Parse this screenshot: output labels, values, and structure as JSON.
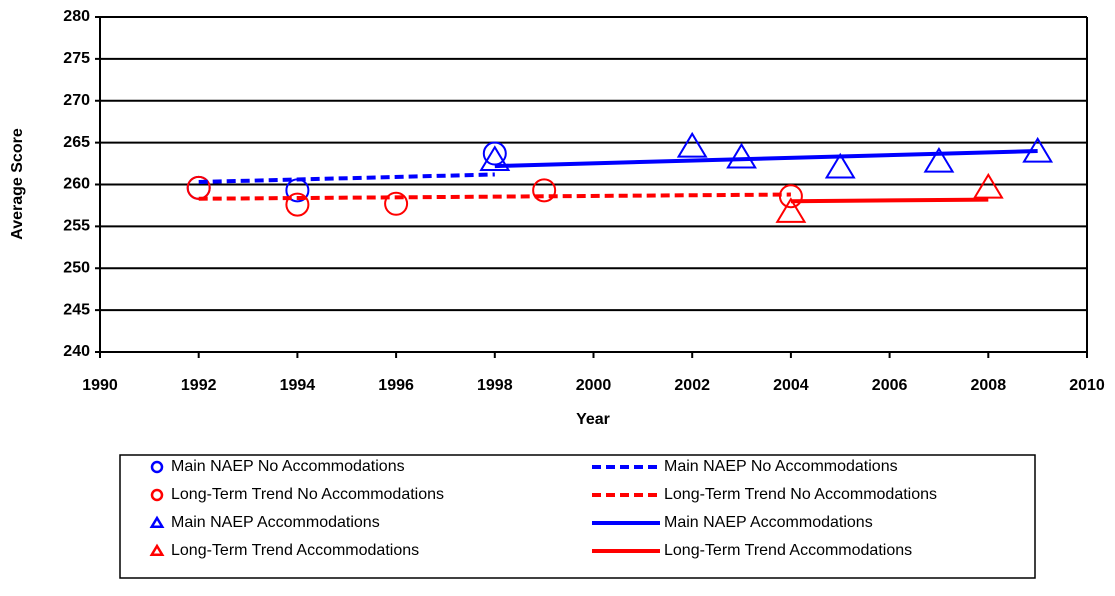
{
  "chart_data": {
    "type": "scatter-trend",
    "xlabel": "Year",
    "ylabel": "Average Score",
    "xlim": [
      1990,
      2010
    ],
    "xticks": [
      1990,
      1992,
      1994,
      1996,
      1998,
      2000,
      2002,
      2004,
      2006,
      2008,
      2010
    ],
    "ylim": [
      240,
      280
    ],
    "yticks": [
      240,
      245,
      250,
      255,
      260,
      265,
      270,
      275,
      280
    ],
    "grid": true,
    "series": [
      {
        "name": "Main NAEP No Accommodations",
        "color": "#0000ff",
        "marker": "circle",
        "x": [
          1992,
          1994,
          1998
        ],
        "values": [
          259.6,
          259.3,
          263.7
        ]
      },
      {
        "name": "Long-Term Trend No Accommodations",
        "color": "#ff0000",
        "marker": "circle",
        "x": [
          1992,
          1994,
          1996,
          1999,
          2004
        ],
        "values": [
          259.6,
          257.6,
          257.7,
          259.3,
          258.6
        ]
      },
      {
        "name": "Main NAEP Accommodations",
        "color": "#0000ff",
        "marker": "triangle",
        "x": [
          1998,
          2002,
          2003,
          2005,
          2007,
          2009
        ],
        "values": [
          262.9,
          264.5,
          263.2,
          262.0,
          262.7,
          263.9
        ]
      },
      {
        "name": "Long-Term Trend Accommodations",
        "color": "#ff0000",
        "marker": "triangle",
        "x": [
          2004,
          2008
        ],
        "values": [
          256.7,
          259.6
        ]
      },
      {
        "name": "Main NAEP No Accommodations",
        "color": "#0000ff",
        "marker": "dashed",
        "x": [
          1992,
          1998
        ],
        "values": [
          260.3,
          261.2
        ]
      },
      {
        "name": "Long-Term Trend No Accommodations",
        "color": "#ff0000",
        "marker": "dashed",
        "x": [
          1992,
          2004
        ],
        "values": [
          258.3,
          258.8
        ]
      },
      {
        "name": "Main NAEP Accommodations",
        "color": "#0000ff",
        "marker": "solid",
        "x": [
          1998,
          2009
        ],
        "values": [
          262.2,
          264.0
        ]
      },
      {
        "name": "Long-Term Trend Accommodations",
        "color": "#ff0000",
        "marker": "solid",
        "x": [
          2004,
          2008
        ],
        "values": [
          258.0,
          258.2
        ]
      }
    ]
  }
}
